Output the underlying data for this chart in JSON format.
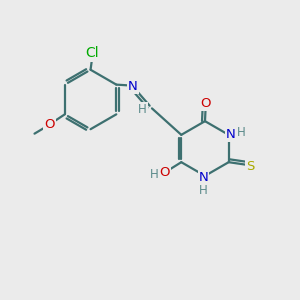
{
  "background_color": "#ebebeb",
  "bond_color": "#3d7070",
  "bond_width": 1.6,
  "atom_colors": {
    "N": "#0000cc",
    "O": "#cc0000",
    "S": "#aaaa00",
    "Cl": "#00aa00",
    "H": "#5a8a8a"
  },
  "font_size": 9.5
}
